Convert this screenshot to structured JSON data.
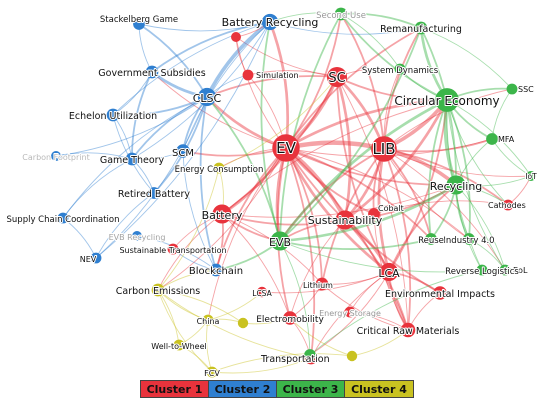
{
  "nodes": [
    {
      "id": "ev",
      "label": "EV",
      "cluster": 1,
      "weight": 5
    },
    {
      "id": "lib",
      "label": "LIB",
      "cluster": 1,
      "weight": 4.6
    },
    {
      "id": "sc",
      "label": "SC",
      "cluster": 1,
      "weight": 3.4
    },
    {
      "id": "sustainability",
      "label": "Sustainability",
      "cluster": 1,
      "weight": 3.2
    },
    {
      "id": "lca",
      "label": "LCA",
      "cluster": 1,
      "weight": 3
    },
    {
      "id": "battery",
      "label": "Battery",
      "cluster": 1,
      "weight": 3.2
    },
    {
      "id": "cobalt",
      "label": "Cobalt",
      "cluster": 1,
      "weight": 1.6
    },
    {
      "id": "lithium",
      "label": "Lithium",
      "cluster": 1,
      "weight": 1.8
    },
    {
      "id": "environmental_impacts",
      "label": "Environmental Impacts",
      "cluster": 1,
      "weight": 2
    },
    {
      "id": "critical_raw_materials",
      "label": "Critical Raw Materials",
      "cluster": 1,
      "weight": 2.2
    },
    {
      "id": "electromobility",
      "label": "Electromobility",
      "cluster": 1,
      "weight": 2
    },
    {
      "id": "transportation",
      "label": "Transportation",
      "cluster": 1,
      "weight": 1.8
    },
    {
      "id": "sustainable_transportation",
      "label": "Sustainable Transportation",
      "cluster": 1,
      "weight": 1.4
    },
    {
      "id": "simulation",
      "label": "Simulation",
      "cluster": 1,
      "weight": 1.4
    },
    {
      "id": "lcsa",
      "label": "LCSA",
      "cluster": 1,
      "weight": 1.3
    },
    {
      "id": "cathodes",
      "label": "Cathodes",
      "cluster": 1,
      "weight": 1.4
    },
    {
      "id": "energy_storage",
      "label": "Energy Storage",
      "cluster": 1,
      "weight": 1.4
    },
    {
      "id": "red_top",
      "label": "",
      "cluster": 1,
      "weight": 1.2
    },
    {
      "id": "clsc",
      "label": "CLSC",
      "cluster": 2,
      "weight": 3
    },
    {
      "id": "battery_recycling",
      "label": "Battery Recycling",
      "cluster": 2,
      "weight": 2.6
    },
    {
      "id": "scm",
      "label": "SCM",
      "cluster": 2,
      "weight": 2
    },
    {
      "id": "government_subsidies",
      "label": "Government Subsidies",
      "cluster": 2,
      "weight": 1.8
    },
    {
      "id": "stackelberg_game",
      "label": "Stackelberg Game",
      "cluster": 2,
      "weight": 1.6
    },
    {
      "id": "echelon_utilization",
      "label": "Echelon Utilization",
      "cluster": 2,
      "weight": 1.8
    },
    {
      "id": "game_theory",
      "label": "Game Theory",
      "cluster": 2,
      "weight": 1.8
    },
    {
      "id": "retired_battery",
      "label": "Retired Battery",
      "cluster": 2,
      "weight": 1.6
    },
    {
      "id": "supply_chain_coordination",
      "label": "Supply Chain Coordination",
      "cluster": 2,
      "weight": 1.4
    },
    {
      "id": "nev",
      "label": "NEV",
      "cluster": 2,
      "weight": 1.4
    },
    {
      "id": "blockchain",
      "label": "Blockchain",
      "cluster": 2,
      "weight": 1.8
    },
    {
      "id": "evb_recycling",
      "label": "EVB Recycling",
      "cluster": 2,
      "weight": 1.2
    },
    {
      "id": "carbon_footprint",
      "label": "Carbon Footprint",
      "cluster": 2,
      "weight": 1.2
    },
    {
      "id": "circular_economy",
      "label": "Circular Economy",
      "cluster": 3,
      "weight": 4.2
    },
    {
      "id": "recycling",
      "label": "Recycling",
      "cluster": 3,
      "weight": 3.2
    },
    {
      "id": "evb",
      "label": "EVB",
      "cluster": 3,
      "weight": 3.2
    },
    {
      "id": "remanufacturing",
      "label": "Remanufacturing",
      "cluster": 3,
      "weight": 1.8
    },
    {
      "id": "second_use",
      "label": "Second Use",
      "cluster": 3,
      "weight": 1.8
    },
    {
      "id": "system_dynamics",
      "label": "System Dynamics",
      "cluster": 3,
      "weight": 1.4
    },
    {
      "id": "ssc",
      "label": "SSC",
      "cluster": 3,
      "weight": 1.4
    },
    {
      "id": "mfa",
      "label": "MFA",
      "cluster": 3,
      "weight": 1.6
    },
    {
      "id": "iot",
      "label": "IoT",
      "cluster": 3,
      "weight": 1.2
    },
    {
      "id": "industry_4",
      "label": "Industry 4.0",
      "cluster": 3,
      "weight": 1.6
    },
    {
      "id": "reuse",
      "label": "Reuse",
      "cluster": 3,
      "weight": 1.6
    },
    {
      "id": "eol",
      "label": "EoL",
      "cluster": 3,
      "weight": 1.4
    },
    {
      "id": "reverse_logistics",
      "label": "Reverse Logistics",
      "cluster": 3,
      "weight": 1.4
    },
    {
      "id": "green_bottom",
      "label": "",
      "cluster": 3,
      "weight": 1.6
    },
    {
      "id": "carbon_emissions",
      "label": "Carbon Emissions",
      "cluster": 4,
      "weight": 1.8
    },
    {
      "id": "china",
      "label": "China",
      "cluster": 4,
      "weight": 1.4
    },
    {
      "id": "well_to_wheel",
      "label": "Well-to-Wheel",
      "cluster": 4,
      "weight": 1.4
    },
    {
      "id": "fcv",
      "label": "FCV",
      "cluster": 4,
      "weight": 1.4
    },
    {
      "id": "energy_consumption",
      "label": "Energy Consumption",
      "cluster": 4,
      "weight": 1.4
    },
    {
      "id": "yellow_1",
      "label": "",
      "cluster": 4,
      "weight": 1.3
    },
    {
      "id": "yellow_2",
      "label": "",
      "cluster": 4,
      "weight": 1.3
    }
  ],
  "edges": [
    [
      "ev",
      "lib",
      5
    ],
    [
      "ev",
      "sc",
      4
    ],
    [
      "ev",
      "sustainability",
      4
    ],
    [
      "ev",
      "lca",
      3
    ],
    [
      "ev",
      "battery",
      3
    ],
    [
      "ev",
      "evb",
      3
    ],
    [
      "ev",
      "circular_economy",
      3
    ],
    [
      "ev",
      "recycling",
      2
    ],
    [
      "ev",
      "clsc",
      3
    ],
    [
      "ev",
      "battery_recycling",
      3
    ],
    [
      "ev",
      "scm",
      2
    ],
    [
      "ev",
      "cobalt",
      2
    ],
    [
      "ev",
      "lithium",
      2
    ],
    [
      "ev",
      "environmental_impacts",
      2
    ],
    [
      "ev",
      "critical_raw_materials",
      2
    ],
    [
      "ev",
      "electromobility",
      2
    ],
    [
      "ev",
      "transportation",
      2
    ],
    [
      "ev",
      "simulation",
      1
    ],
    [
      "ev",
      "government_subsidies",
      1
    ],
    [
      "ev",
      "blockchain",
      2
    ],
    [
      "ev",
      "carbon_emissions",
      1
    ],
    [
      "ev",
      "china",
      1
    ],
    [
      "ev",
      "remanufacturing",
      2
    ],
    [
      "ev",
      "second_use",
      2
    ],
    [
      "ev",
      "reuse",
      2
    ],
    [
      "ev",
      "mfa",
      1
    ],
    [
      "ev",
      "industry_4",
      1
    ],
    [
      "ev",
      "energy_consumption",
      1
    ],
    [
      "ev",
      "red_top",
      1
    ],
    [
      "lib",
      "circular_economy",
      4
    ],
    [
      "lib",
      "recycling",
      4
    ],
    [
      "lib",
      "sc",
      3
    ],
    [
      "lib",
      "sustainability",
      3
    ],
    [
      "lib",
      "lca",
      3
    ],
    [
      "lib",
      "remanufacturing",
      2
    ],
    [
      "lib",
      "second_use",
      2
    ],
    [
      "lib",
      "reuse",
      2
    ],
    [
      "lib",
      "cobalt",
      2
    ],
    [
      "lib",
      "cathodes",
      2
    ],
    [
      "lib",
      "mfa",
      2
    ],
    [
      "lib",
      "ssc",
      1
    ],
    [
      "lib",
      "evb",
      2
    ],
    [
      "lib",
      "critical_raw_materials",
      2
    ],
    [
      "lib",
      "industry_4",
      1
    ],
    [
      "lib",
      "eol",
      1
    ],
    [
      "lib",
      "lithium",
      2
    ],
    [
      "lib",
      "system_dynamics",
      1
    ],
    [
      "lib",
      "iot",
      1
    ],
    [
      "sc",
      "sustainability",
      3
    ],
    [
      "sc",
      "circular_economy",
      2
    ],
    [
      "sc",
      "battery",
      2
    ],
    [
      "sc",
      "clsc",
      2
    ],
    [
      "sc",
      "system_dynamics",
      1
    ],
    [
      "sc",
      "simulation",
      1
    ],
    [
      "sc",
      "critical_raw_materials",
      1
    ],
    [
      "sc",
      "lca",
      2
    ],
    [
      "sc",
      "red_top",
      1
    ],
    [
      "sustainability",
      "circular_economy",
      3
    ],
    [
      "sustainability",
      "lca",
      3
    ],
    [
      "sustainability",
      "evb",
      2
    ],
    [
      "sustainability",
      "battery",
      2
    ],
    [
      "sustainability",
      "recycling",
      2
    ],
    [
      "sustainability",
      "critical_raw_materials",
      2
    ],
    [
      "sustainability",
      "electromobility",
      1
    ],
    [
      "lca",
      "environmental_impacts",
      2
    ],
    [
      "lca",
      "critical_raw_materials",
      2
    ],
    [
      "lca",
      "recycling",
      2
    ],
    [
      "lca",
      "circular_economy",
      2
    ],
    [
      "lca",
      "lithium",
      1
    ],
    [
      "lca",
      "energy_storage",
      1
    ],
    [
      "lca",
      "lcsa",
      1
    ],
    [
      "lca",
      "transportation",
      1
    ],
    [
      "lca",
      "green_bottom",
      1
    ],
    [
      "battery",
      "evb",
      2
    ],
    [
      "battery",
      "blockchain",
      2
    ],
    [
      "battery",
      "recycling",
      1
    ],
    [
      "battery",
      "circular_economy",
      1
    ],
    [
      "battery",
      "sustainable_transportation",
      1
    ],
    [
      "battery",
      "lithium",
      1
    ],
    [
      "battery",
      "carbon_emissions",
      1
    ],
    [
      "battery",
      "electromobility",
      1
    ],
    [
      "circular_economy",
      "recycling",
      4
    ],
    [
      "circular_economy",
      "remanufacturing",
      3
    ],
    [
      "circular_economy",
      "evb",
      3
    ],
    [
      "circular_economy",
      "second_use",
      2
    ],
    [
      "circular_economy",
      "reuse",
      2
    ],
    [
      "circular_economy",
      "ssc",
      2
    ],
    [
      "circular_economy",
      "mfa",
      2
    ],
    [
      "circular_economy",
      "industry_4",
      2
    ],
    [
      "circular_economy",
      "eol",
      1
    ],
    [
      "circular_economy",
      "system_dynamics",
      1
    ],
    [
      "circular_economy",
      "reverse_logistics",
      1
    ],
    [
      "circular_economy",
      "iot",
      1
    ],
    [
      "circular_economy",
      "cathodes",
      1
    ],
    [
      "recycling",
      "evb",
      3
    ],
    [
      "recycling",
      "remanufacturing",
      2
    ],
    [
      "recycling",
      "reuse",
      2
    ],
    [
      "recycling",
      "industry_4",
      2
    ],
    [
      "recycling",
      "eol",
      1
    ],
    [
      "recycling",
      "iot",
      1
    ],
    [
      "recycling",
      "mfa",
      1
    ],
    [
      "recycling",
      "reverse_logistics",
      1
    ],
    [
      "recycling",
      "cathodes",
      1
    ],
    [
      "evb",
      "remanufacturing",
      2
    ],
    [
      "evb",
      "second_use",
      2
    ],
    [
      "evb",
      "reuse",
      2
    ],
    [
      "evb",
      "blockchain",
      2
    ],
    [
      "evb",
      "clsc",
      2
    ],
    [
      "evb",
      "green_bottom",
      1
    ],
    [
      "evb",
      "reverse_logistics",
      1
    ],
    [
      "evb",
      "battery_recycling",
      2
    ],
    [
      "remanufacturing",
      "second_use",
      2
    ],
    [
      "remanufacturing",
      "ssc",
      1
    ],
    [
      "second_use",
      "battery_recycling",
      1
    ],
    [
      "clsc",
      "battery_recycling",
      4
    ],
    [
      "clsc",
      "scm",
      2
    ],
    [
      "clsc",
      "government_subsidies",
      3
    ],
    [
      "clsc",
      "stackelberg_game",
      2
    ],
    [
      "clsc",
      "echelon_utilization",
      2
    ],
    [
      "clsc",
      "game_theory",
      2
    ],
    [
      "clsc",
      "retired_battery",
      2
    ],
    [
      "clsc",
      "supply_chain_coordination",
      1
    ],
    [
      "clsc",
      "nev",
      1
    ],
    [
      "clsc",
      "blockchain",
      2
    ],
    [
      "clsc",
      "simulation",
      1
    ],
    [
      "battery_recycling",
      "government_subsidies",
      2
    ],
    [
      "battery_recycling",
      "stackelberg_game",
      1
    ],
    [
      "battery_recycling",
      "echelon_utilization",
      1
    ],
    [
      "battery_recycling",
      "game_theory",
      1
    ],
    [
      "battery_recycling",
      "scm",
      1
    ],
    [
      "battery_recycling",
      "nev",
      1
    ],
    [
      "battery_recycling",
      "remanufacturing",
      1
    ],
    [
      "government_subsidies",
      "stackelberg_game",
      1
    ],
    [
      "government_subsidies",
      "game_theory",
      2
    ],
    [
      "government_subsidies",
      "echelon_utilization",
      1
    ],
    [
      "game_theory",
      "echelon_utilization",
      1
    ],
    [
      "game_theory",
      "retired_battery",
      1
    ],
    [
      "game_theory",
      "supply_chain_coordination",
      1
    ],
    [
      "retired_battery",
      "echelon_utilization",
      1
    ],
    [
      "retired_battery",
      "nev",
      1
    ],
    [
      "supply_chain_coordination",
      "nev",
      1
    ],
    [
      "scm",
      "blockchain",
      1
    ],
    [
      "scm",
      "game_theory",
      1
    ],
    [
      "blockchain",
      "evb_recycling",
      1
    ],
    [
      "blockchain",
      "sustainable_transportation",
      1
    ],
    [
      "carbon_footprint",
      "clsc",
      1
    ],
    [
      "carbon_footprint",
      "game_theory",
      1
    ],
    [
      "carbon_emissions",
      "china",
      1
    ],
    [
      "carbon_emissions",
      "well_to_wheel",
      1
    ],
    [
      "carbon_emissions",
      "fcv",
      1
    ],
    [
      "carbon_emissions",
      "yellow_1",
      1
    ],
    [
      "carbon_emissions",
      "energy_consumption",
      1
    ],
    [
      "carbon_emissions",
      "blockchain",
      1
    ],
    [
      "carbon_emissions",
      "transportation",
      1
    ],
    [
      "china",
      "well_to_wheel",
      1
    ],
    [
      "china",
      "fcv",
      1
    ],
    [
      "china",
      "yellow_1",
      1
    ],
    [
      "china",
      "lcsa",
      1
    ],
    [
      "well_to_wheel",
      "fcv",
      1
    ],
    [
      "fcv",
      "transportation",
      1
    ],
    [
      "fcv",
      "yellow_2",
      1
    ],
    [
      "yellow_2",
      "critical_raw_materials",
      1
    ],
    [
      "yellow_2",
      "electromobility",
      1
    ],
    [
      "yellow_1",
      "electromobility",
      1
    ],
    [
      "energy_consumption",
      "battery",
      1
    ],
    [
      "energy_consumption",
      "sc",
      1
    ],
    [
      "lithium",
      "electromobility",
      1
    ],
    [
      "lithium",
      "critical_raw_materials",
      1
    ],
    [
      "electromobility",
      "transportation",
      1
    ],
    [
      "environmental_impacts",
      "critical_raw_materials",
      1
    ],
    [
      "energy_storage",
      "critical_raw_materials",
      1
    ],
    [
      "cobalt",
      "critical_raw_materials",
      1
    ],
    [
      "cobalt",
      "cathodes",
      1
    ],
    [
      "cathodes",
      "iot",
      1
    ],
    [
      "industry_4",
      "eol",
      1
    ],
    [
      "reverse_logistics",
      "eol",
      1
    ],
    [
      "mfa",
      "ssc",
      1
    ],
    [
      "mfa",
      "iot",
      1
    ],
    [
      "green_bottom",
      "reverse_logistics",
      1
    ],
    [
      "system_dynamics",
      "second_use",
      1
    ],
    [
      "simulation",
      "red_top",
      1
    ],
    [
      "red_top",
      "battery_recycling",
      1
    ]
  ],
  "legend": [
    {
      "id": "cluster1",
      "label": "Cluster 1",
      "color": "#e8333c"
    },
    {
      "id": "cluster2",
      "label": "Cluster 2",
      "color": "#2f7fd0"
    },
    {
      "id": "cluster3",
      "label": "Cluster 3",
      "color": "#3cb54a"
    },
    {
      "id": "cluster4",
      "label": "Cluster 4",
      "color": "#c9c221"
    }
  ],
  "colors": {
    "1": "#e8333c",
    "2": "#2f7fd0",
    "3": "#3cb54a",
    "4": "#c9c221"
  }
}
